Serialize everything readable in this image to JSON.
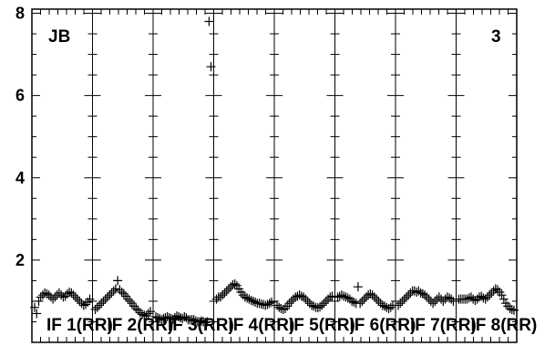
{
  "chart_data": {
    "type": "scatter",
    "marker": "plus",
    "title": "",
    "xlabel": "",
    "ylabel": "",
    "ylim": [
      0,
      8.1
    ],
    "y_ticks": [
      "8",
      "6",
      "4",
      "2"
    ],
    "grid": false,
    "corner_labels": {
      "left": "JB",
      "right": "3"
    },
    "panels": [
      {
        "label": "IF 1(RR)",
        "points": [
          0.85,
          0.7,
          1.0,
          1.1,
          1.15,
          1.2,
          1.18,
          1.15,
          1.1,
          1.05,
          1.1,
          1.15,
          1.2,
          1.15,
          1.1,
          1.12,
          1.18,
          1.22,
          1.2,
          1.15,
          1.1,
          1.05,
          1.0,
          0.95,
          0.9,
          0.92,
          0.98,
          1.05
        ]
      },
      {
        "label": "IF 2(RR)",
        "points": [
          0.8,
          0.85,
          0.9,
          0.95,
          1.0,
          1.05,
          1.1,
          1.15,
          1.2,
          1.25,
          1.3,
          1.5,
          1.28,
          1.22,
          1.18,
          1.12,
          1.05,
          1.0,
          0.95,
          0.88,
          0.82,
          0.78,
          0.72,
          0.68,
          0.66,
          0.64,
          0.7,
          0.75
        ]
      },
      {
        "label": "IF 3(RR)",
        "points": [
          0.62,
          0.6,
          0.58,
          0.55,
          0.58,
          0.6,
          0.62,
          0.6,
          0.58,
          0.56,
          0.6,
          0.64,
          0.62,
          0.6,
          0.58,
          0.62,
          0.6,
          0.55,
          0.55,
          0.55,
          0.55,
          0.52,
          0.5,
          0.5,
          0.52,
          0.5,
          0.48,
          0.5,
          7.8,
          6.7
        ]
      },
      {
        "label": "IF 4(RR)",
        "points": [
          1.05,
          1.1,
          1.1,
          1.15,
          1.2,
          1.25,
          1.3,
          1.35,
          1.4,
          1.42,
          1.38,
          1.3,
          1.22,
          1.15,
          1.1,
          1.08,
          1.05,
          1.02,
          1.0,
          0.98,
          0.95,
          0.95,
          0.93,
          0.92,
          0.9,
          0.92,
          0.95,
          0.98
        ]
      },
      {
        "label": "IF 5(RR)",
        "points": [
          0.9,
          0.85,
          0.82,
          0.8,
          0.82,
          0.88,
          0.95,
          1.0,
          1.05,
          1.1,
          1.12,
          1.15,
          1.12,
          1.1,
          1.05,
          1.0,
          0.95,
          0.9,
          0.88,
          0.85,
          0.84,
          0.86,
          0.9,
          0.95,
          1.0,
          1.05,
          1.1,
          1.12
        ]
      },
      {
        "label": "IF 6(RR)",
        "points": [
          1.1,
          1.12,
          1.15,
          1.12,
          1.1,
          1.08,
          1.05,
          1.0,
          0.98,
          0.95,
          1.35,
          0.95,
          1.0,
          1.05,
          1.1,
          1.15,
          1.18,
          1.15,
          1.1,
          1.05,
          1.0,
          0.95,
          0.9,
          0.88,
          0.85,
          0.82,
          0.85,
          0.9
        ]
      },
      {
        "label": "IF 7(RR)",
        "points": [
          0.9,
          0.95,
          1.0,
          1.05,
          1.1,
          1.15,
          1.2,
          1.25,
          1.25,
          1.22,
          1.25,
          1.2,
          1.18,
          1.15,
          1.1,
          1.05,
          1.0,
          0.95,
          1.0,
          1.05,
          1.1,
          1.05,
          1.0,
          1.05,
          1.1,
          1.08,
          1.05,
          1.0
        ]
      },
      {
        "label": "IF 8(RR)",
        "points": [
          1.05,
          1.05,
          1.05,
          1.05,
          1.05,
          1.08,
          1.1,
          1.05,
          1.02,
          1.05,
          1.1,
          1.12,
          1.08,
          1.05,
          1.1,
          1.15,
          1.2,
          1.25,
          1.3,
          1.28,
          1.22,
          1.15,
          1.05,
          0.95,
          0.88,
          0.82,
          0.8,
          0.78
        ]
      }
    ]
  }
}
